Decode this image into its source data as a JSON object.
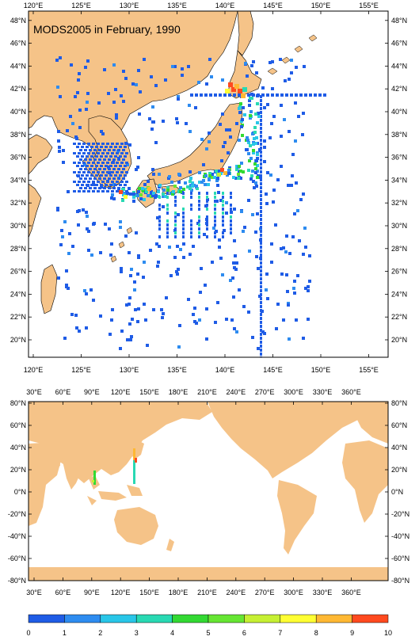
{
  "title": "MODS2005 in February, 1990",
  "colors": {
    "land": "#f5c388",
    "ocean": "#ffffff",
    "frame": "#000000",
    "scale": [
      "#1f5ce6",
      "#2e8cf0",
      "#29c6e8",
      "#29d9b3",
      "#33d933",
      "#66e633",
      "#c6f033",
      "#ffff33",
      "#ffb833",
      "#ff4a1f"
    ]
  },
  "upper_map": {
    "lon_labels": [
      "120°E",
      "125°E",
      "130°E",
      "135°E",
      "140°E",
      "145°E",
      "150°E",
      "155°E"
    ],
    "lat_labels": [
      "20°N",
      "22°N",
      "24°N",
      "26°N",
      "28°N",
      "30°N",
      "32°N",
      "34°N",
      "36°N",
      "38°N",
      "40°N",
      "42°N",
      "44°N",
      "46°N",
      "48°N"
    ]
  },
  "lower_map": {
    "lon_labels": [
      "30°E",
      "60°E",
      "90°E",
      "120°E",
      "150°E",
      "180°E",
      "210°E",
      "240°E",
      "270°E",
      "300°E",
      "330°E",
      "360°E"
    ],
    "lat_labels": [
      "80°N",
      "60°N",
      "40°N",
      "20°N",
      "0°N",
      "-20°N",
      "-40°N",
      "-60°N",
      "-80°N"
    ]
  },
  "colorbar": {
    "labels": [
      "0",
      "1",
      "2",
      "3",
      "4",
      "5",
      "6",
      "7",
      "8",
      "9",
      "10"
    ]
  }
}
